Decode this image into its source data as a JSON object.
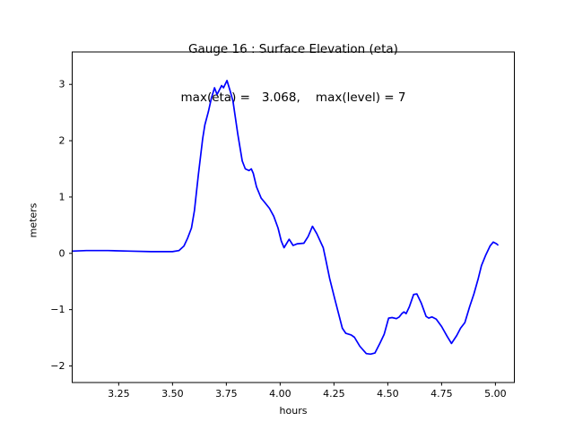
{
  "colors": {
    "background": "#ffffff",
    "text": "#000000",
    "spine": "#000000",
    "line": "#0000ff"
  },
  "chart_data": {
    "type": "line",
    "title": "Gauge 16 : Surface Elevation (eta)",
    "subtitle": "max(eta) =   3.068,    max(level) = 7",
    "max_eta": 3.068,
    "max_level": 7,
    "xlabel": "hours",
    "ylabel": "meters",
    "xlim": [
      3.034,
      5.088
    ],
    "ylim": [
      -2.294,
      3.576
    ],
    "xticks": [
      3.25,
      3.5,
      3.75,
      4.0,
      4.25,
      4.5,
      4.75,
      5.0
    ],
    "xtick_labels": [
      "3.25",
      "3.50",
      "3.75",
      "4.00",
      "4.25",
      "4.50",
      "4.75",
      "5.00"
    ],
    "yticks": [
      -2,
      -1,
      0,
      1,
      2,
      3
    ],
    "ytick_labels": [
      "−2",
      "−1",
      "0",
      "1",
      "2",
      "3"
    ],
    "grid": false,
    "legend": null,
    "series": [
      {
        "name": "eta",
        "color": "#0000ff",
        "points": [
          [
            3.034,
            0.04
          ],
          [
            3.1,
            0.05
          ],
          [
            3.2,
            0.05
          ],
          [
            3.3,
            0.04
          ],
          [
            3.4,
            0.03
          ],
          [
            3.5,
            0.03
          ],
          [
            3.53,
            0.05
          ],
          [
            3.553,
            0.13
          ],
          [
            3.57,
            0.27
          ],
          [
            3.588,
            0.45
          ],
          [
            3.602,
            0.76
          ],
          [
            3.611,
            1.08
          ],
          [
            3.62,
            1.4
          ],
          [
            3.63,
            1.72
          ],
          [
            3.64,
            2.04
          ],
          [
            3.65,
            2.28
          ],
          [
            3.667,
            2.52
          ],
          [
            3.68,
            2.75
          ],
          [
            3.695,
            2.94
          ],
          [
            3.707,
            2.82
          ],
          [
            3.728,
            2.98
          ],
          [
            3.737,
            2.94
          ],
          [
            3.753,
            3.068
          ],
          [
            3.768,
            2.88
          ],
          [
            3.781,
            2.7
          ],
          [
            3.803,
            2.12
          ],
          [
            3.824,
            1.64
          ],
          [
            3.838,
            1.5
          ],
          [
            3.855,
            1.47
          ],
          [
            3.866,
            1.5
          ],
          [
            3.875,
            1.42
          ],
          [
            3.89,
            1.18
          ],
          [
            3.912,
            0.98
          ],
          [
            3.925,
            0.92
          ],
          [
            3.95,
            0.8
          ],
          [
            3.97,
            0.66
          ],
          [
            3.99,
            0.45
          ],
          [
            4.005,
            0.22
          ],
          [
            4.018,
            0.1
          ],
          [
            4.042,
            0.25
          ],
          [
            4.06,
            0.14
          ],
          [
            4.08,
            0.17
          ],
          [
            4.11,
            0.18
          ],
          [
            4.13,
            0.3
          ],
          [
            4.15,
            0.48
          ],
          [
            4.17,
            0.35
          ],
          [
            4.2,
            0.1
          ],
          [
            4.212,
            -0.11
          ],
          [
            4.23,
            -0.45
          ],
          [
            4.253,
            -0.8
          ],
          [
            4.289,
            -1.33
          ],
          [
            4.305,
            -1.42
          ],
          [
            4.33,
            -1.45
          ],
          [
            4.345,
            -1.49
          ],
          [
            4.37,
            -1.65
          ],
          [
            4.4,
            -1.78
          ],
          [
            4.42,
            -1.79
          ],
          [
            4.44,
            -1.77
          ],
          [
            4.463,
            -1.6
          ],
          [
            4.483,
            -1.44
          ],
          [
            4.504,
            -1.15
          ],
          [
            4.52,
            -1.14
          ],
          [
            4.54,
            -1.16
          ],
          [
            4.553,
            -1.13
          ],
          [
            4.565,
            -1.07
          ],
          [
            4.575,
            -1.04
          ],
          [
            4.585,
            -1.07
          ],
          [
            4.6,
            -0.95
          ],
          [
            4.62,
            -0.73
          ],
          [
            4.635,
            -0.72
          ],
          [
            4.655,
            -0.88
          ],
          [
            4.678,
            -1.12
          ],
          [
            4.69,
            -1.15
          ],
          [
            4.705,
            -1.13
          ],
          [
            4.725,
            -1.17
          ],
          [
            4.75,
            -1.3
          ],
          [
            4.775,
            -1.47
          ],
          [
            4.796,
            -1.6
          ],
          [
            4.82,
            -1.46
          ],
          [
            4.838,
            -1.33
          ],
          [
            4.858,
            -1.23
          ],
          [
            4.88,
            -0.95
          ],
          [
            4.9,
            -0.72
          ],
          [
            4.92,
            -0.45
          ],
          [
            4.935,
            -0.22
          ],
          [
            4.955,
            -0.03
          ],
          [
            4.975,
            0.13
          ],
          [
            4.99,
            0.2
          ],
          [
            5.005,
            0.17
          ],
          [
            5.011,
            0.15
          ]
        ]
      }
    ]
  }
}
